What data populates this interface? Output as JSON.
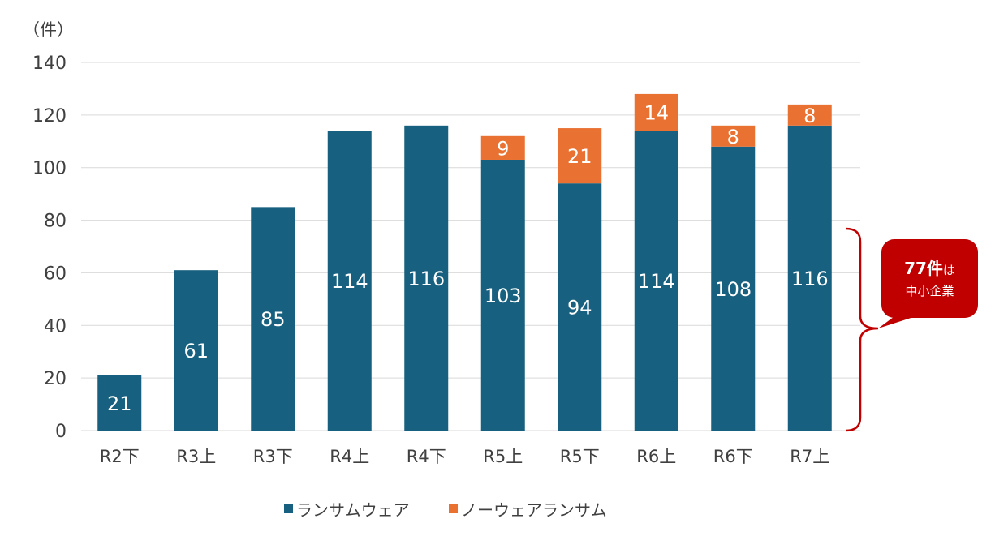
{
  "chart_data": {
    "type": "bar",
    "stacked": true,
    "unit_label": "（件）",
    "categories": [
      "R2下",
      "R3上",
      "R3下",
      "R4上",
      "R4下",
      "R5上",
      "R5下",
      "R6上",
      "R6下",
      "R7上"
    ],
    "series": [
      {
        "name": "ランサムウェア",
        "color": "#17607f",
        "values": [
          21,
          61,
          85,
          114,
          116,
          103,
          94,
          114,
          108,
          116
        ]
      },
      {
        "name": "ノーウェアランサム",
        "color": "#e97132",
        "values": [
          null,
          null,
          null,
          null,
          null,
          9,
          21,
          14,
          8,
          8
        ]
      }
    ],
    "ylim": [
      0,
      140
    ],
    "yticks": [
      0,
      20,
      40,
      60,
      80,
      100,
      120,
      140
    ],
    "grid": true,
    "legend": "bottom",
    "annotation": {
      "count": "77件",
      "suffix": "は",
      "text": "中小企業",
      "color": "#c00000"
    }
  }
}
